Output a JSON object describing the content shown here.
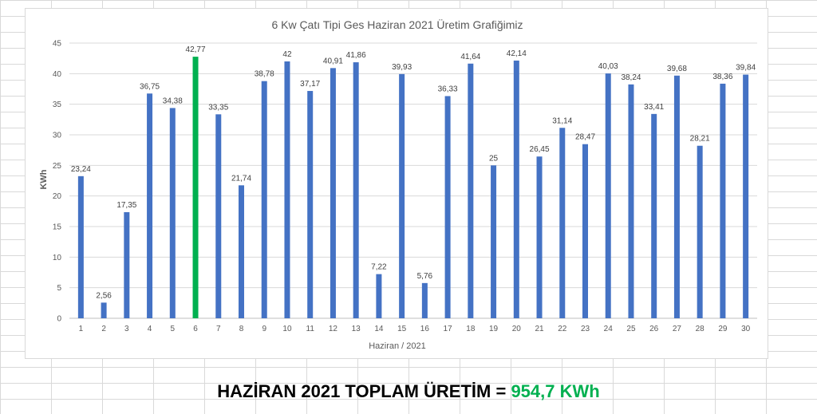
{
  "chart_data": {
    "type": "bar",
    "title": "6 Kw Çatı Tipi Ges Haziran 2021 Üretim Grafiğimiz",
    "xlabel": "Haziran / 2021",
    "ylabel": "KWh",
    "ylim": [
      0,
      45
    ],
    "yticks": [
      "0",
      "5",
      "10",
      "15",
      "20",
      "25",
      "30",
      "35",
      "40",
      "45"
    ],
    "grid": true,
    "categories": [
      "1",
      "2",
      "3",
      "4",
      "5",
      "6",
      "7",
      "8",
      "9",
      "10",
      "11",
      "12",
      "13",
      "14",
      "15",
      "16",
      "17",
      "18",
      "19",
      "20",
      "21",
      "22",
      "23",
      "24",
      "25",
      "26",
      "27",
      "28",
      "29",
      "30"
    ],
    "values": [
      23.24,
      2.56,
      17.35,
      36.75,
      34.38,
      42.77,
      33.35,
      21.74,
      38.78,
      42,
      37.17,
      40.91,
      41.86,
      7.22,
      39.93,
      5.76,
      36.33,
      41.64,
      25,
      42.14,
      26.45,
      31.14,
      28.47,
      40.03,
      38.24,
      33.41,
      39.68,
      28.21,
      38.36,
      39.84
    ],
    "data_labels": [
      "23,24",
      "2,56",
      "17,35",
      "36,75",
      "34,38",
      "42,77",
      "33,35",
      "21,74",
      "38,78",
      "42",
      "37,17",
      "40,91",
      "41,86",
      "7,22",
      "39,93",
      "5,76",
      "36,33",
      "41,64",
      "25",
      "42,14",
      "26,45",
      "31,14",
      "28,47",
      "40,03",
      "38,24",
      "33,41",
      "39,68",
      "28,21",
      "38,36",
      "39,84"
    ],
    "bar_color": "#4472c4",
    "highlight_index": 5,
    "highlight_color": "#00b050"
  },
  "summary": {
    "label": "HAZİRAN 2021 TOPLAM ÜRETİM = ",
    "value": "954,7 KWh",
    "value_color": "#00b050"
  }
}
